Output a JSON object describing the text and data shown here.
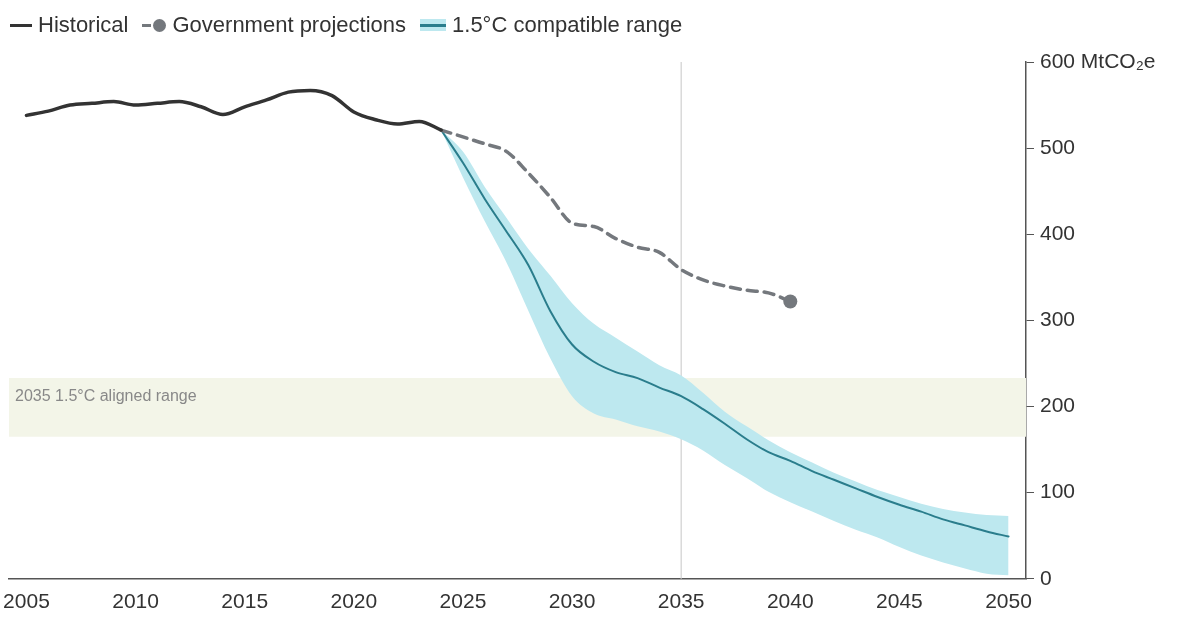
{
  "chart_data": {
    "type": "line",
    "legend": "top left",
    "x": [
      2005,
      2006,
      2007,
      2008,
      2009,
      2010,
      2011,
      2012,
      2013,
      2014,
      2015,
      2016,
      2017,
      2018,
      2019,
      2020,
      2021,
      2022,
      2023,
      2024
    ],
    "series": [
      {
        "name": "Historical",
        "color": "#333333",
        "values": [
          538,
          543,
          550,
          552,
          554,
          550,
          552,
          554,
          548,
          539,
          548,
          556,
          565,
          567,
          561,
          542,
          533,
          528,
          531,
          521
        ]
      },
      {
        "name": "Government projections",
        "color": "#74787d",
        "line_style": "dashed",
        "x": [
          2024,
          2025,
          2026,
          2027,
          2028,
          2029,
          2030,
          2031,
          2032,
          2033,
          2034,
          2035,
          2036,
          2037,
          2038,
          2039,
          2040
        ],
        "values": [
          521,
          513,
          505,
          496,
          471,
          443,
          413,
          409,
          395,
          385,
          379,
          359,
          347,
          340,
          335,
          332,
          322
        ]
      },
      {
        "name": "1.5°C compatible range",
        "color": "#2a7d8c",
        "x": [
          2024,
          2025,
          2026,
          2027,
          2028,
          2029,
          2030,
          2031,
          2032,
          2033,
          2034,
          2035,
          2036,
          2037,
          2038,
          2039,
          2040,
          2041,
          2042,
          2043,
          2044,
          2045,
          2046,
          2047,
          2048,
          2049,
          2050
        ],
        "values": [
          521,
          483,
          441,
          403,
          364,
          311,
          272,
          252,
          240,
          233,
          222,
          212,
          197,
          180,
          162,
          147,
          137,
          125,
          115,
          105,
          95,
          86,
          78,
          69,
          62,
          55,
          49
        ],
        "upper": [
          521,
          496,
          455,
          419,
          383,
          352,
          320,
          296,
          280,
          264,
          248,
          236,
          216,
          194,
          177,
          161,
          147,
          135,
          123,
          113,
          103,
          95,
          87,
          81,
          77,
          74,
          73
        ],
        "lower": [
          521,
          466,
          415,
          367,
          311,
          256,
          212,
          192,
          185,
          177,
          171,
          162,
          149,
          132,
          117,
          101,
          89,
          78,
          67,
          57,
          48,
          37,
          27,
          19,
          12,
          6,
          4
        ]
      }
    ],
    "xlim": [
      2004.2,
      2050.8
    ],
    "xticks": [
      2005,
      2010,
      2015,
      2020,
      2025,
      2030,
      2035,
      2040,
      2045,
      2050
    ],
    "ylim": [
      0,
      600
    ],
    "yticks": [
      0,
      100,
      200,
      300,
      400,
      500,
      {
        "value": 600,
        "label": "600 MtCO₂e"
      }
    ],
    "grid": false,
    "ref_lines": [
      {
        "axis": "x",
        "value": 2035,
        "color": "#d0d0d0"
      }
    ],
    "bands": [
      {
        "axis": "y",
        "from": 165,
        "to": 233,
        "label": "2035 1.5°C aligned range",
        "color": "#f3f5e8"
      }
    ]
  }
}
